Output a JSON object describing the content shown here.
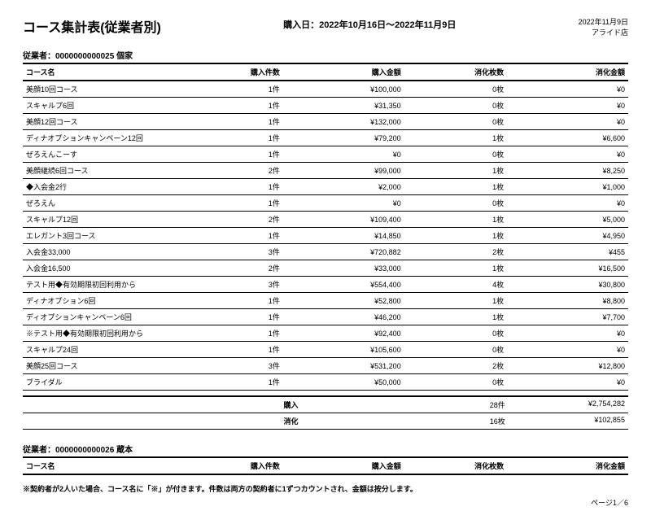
{
  "header": {
    "title": "コース集計表(従業者別)",
    "date_range_label": "購入日：2022年10月16日～2022年11月9日",
    "report_date": "2022年11月9日",
    "store": "アライド店"
  },
  "table_headers": {
    "course_name": "コース名",
    "purchase_count": "購入件数",
    "purchase_amount": "購入金額",
    "used_count": "消化枚数",
    "used_amount": "消化金額"
  },
  "employees": [
    {
      "label": "従業者：0000000000025 個家",
      "rows": [
        {
          "name": "美顔10回コース",
          "qty": "1件",
          "amt": "¥100,000",
          "used": "0枚",
          "uamt": "¥0"
        },
        {
          "name": "スキャルプ6回",
          "qty": "1件",
          "amt": "¥31,350",
          "used": "0枚",
          "uamt": "¥0"
        },
        {
          "name": "美顔12回コース",
          "qty": "1件",
          "amt": "¥132,000",
          "used": "0枚",
          "uamt": "¥0"
        },
        {
          "name": "ディナオプションキャンペーン12回",
          "qty": "1件",
          "amt": "¥79,200",
          "used": "1枚",
          "uamt": "¥6,600"
        },
        {
          "name": "ぜろえんこーす",
          "qty": "1件",
          "amt": "¥0",
          "used": "0枚",
          "uamt": "¥0"
        },
        {
          "name": "美顔継続6回コース",
          "qty": "2件",
          "amt": "¥99,000",
          "used": "1枚",
          "uamt": "¥8,250"
        },
        {
          "name": "◆入会金2行",
          "qty": "1件",
          "amt": "¥2,000",
          "used": "1枚",
          "uamt": "¥1,000"
        },
        {
          "name": "ぜろえん",
          "qty": "1件",
          "amt": "¥0",
          "used": "0枚",
          "uamt": "¥0"
        },
        {
          "name": "スキャルプ12回",
          "qty": "2件",
          "amt": "¥109,400",
          "used": "1枚",
          "uamt": "¥5,000"
        },
        {
          "name": "エレガント3回コース",
          "qty": "1件",
          "amt": "¥14,850",
          "used": "1枚",
          "uamt": "¥4,950"
        },
        {
          "name": "入会金33,000",
          "qty": "3件",
          "amt": "¥720,882",
          "used": "2枚",
          "uamt": "¥455"
        },
        {
          "name": "入会金16,500",
          "qty": "2件",
          "amt": "¥33,000",
          "used": "1枚",
          "uamt": "¥16,500"
        },
        {
          "name": "テスト用◆有効期限初回利用から",
          "qty": "3件",
          "amt": "¥554,400",
          "used": "4枚",
          "uamt": "¥30,800"
        },
        {
          "name": "ディナオプション6回",
          "qty": "1件",
          "amt": "¥52,800",
          "used": "1枚",
          "uamt": "¥8,800"
        },
        {
          "name": "ディオプションキャンペーン6回",
          "qty": "1件",
          "amt": "¥46,200",
          "used": "1枚",
          "uamt": "¥7,700"
        },
        {
          "name": "※テスト用◆有効期限初回利用から",
          "qty": "1件",
          "amt": "¥92,400",
          "used": "0枚",
          "uamt": "¥0"
        },
        {
          "name": "スキャルプ24回",
          "qty": "1件",
          "amt": "¥105,600",
          "used": "0枚",
          "uamt": "¥0"
        },
        {
          "name": "美顔25回コース",
          "qty": "3件",
          "amt": "¥531,200",
          "used": "2枚",
          "uamt": "¥12,800"
        },
        {
          "name": "ブライダル",
          "qty": "1件",
          "amt": "¥50,000",
          "used": "0枚",
          "uamt": "¥0"
        }
      ],
      "totals": {
        "purchase_label": "購入",
        "purchase_count": "28件",
        "purchase_amount": "¥2,754,282",
        "used_label": "消化",
        "used_count": "16枚",
        "used_amount": "¥102,855"
      }
    },
    {
      "label": "従業者：0000000000026 蔵本",
      "rows": []
    }
  ],
  "footnote": "※契約者が2人いた場合、コース名に「※」が付きます。件数は両方の契約者に1ずつカウントされ、金額は按分します。",
  "page": "ページ1／6"
}
